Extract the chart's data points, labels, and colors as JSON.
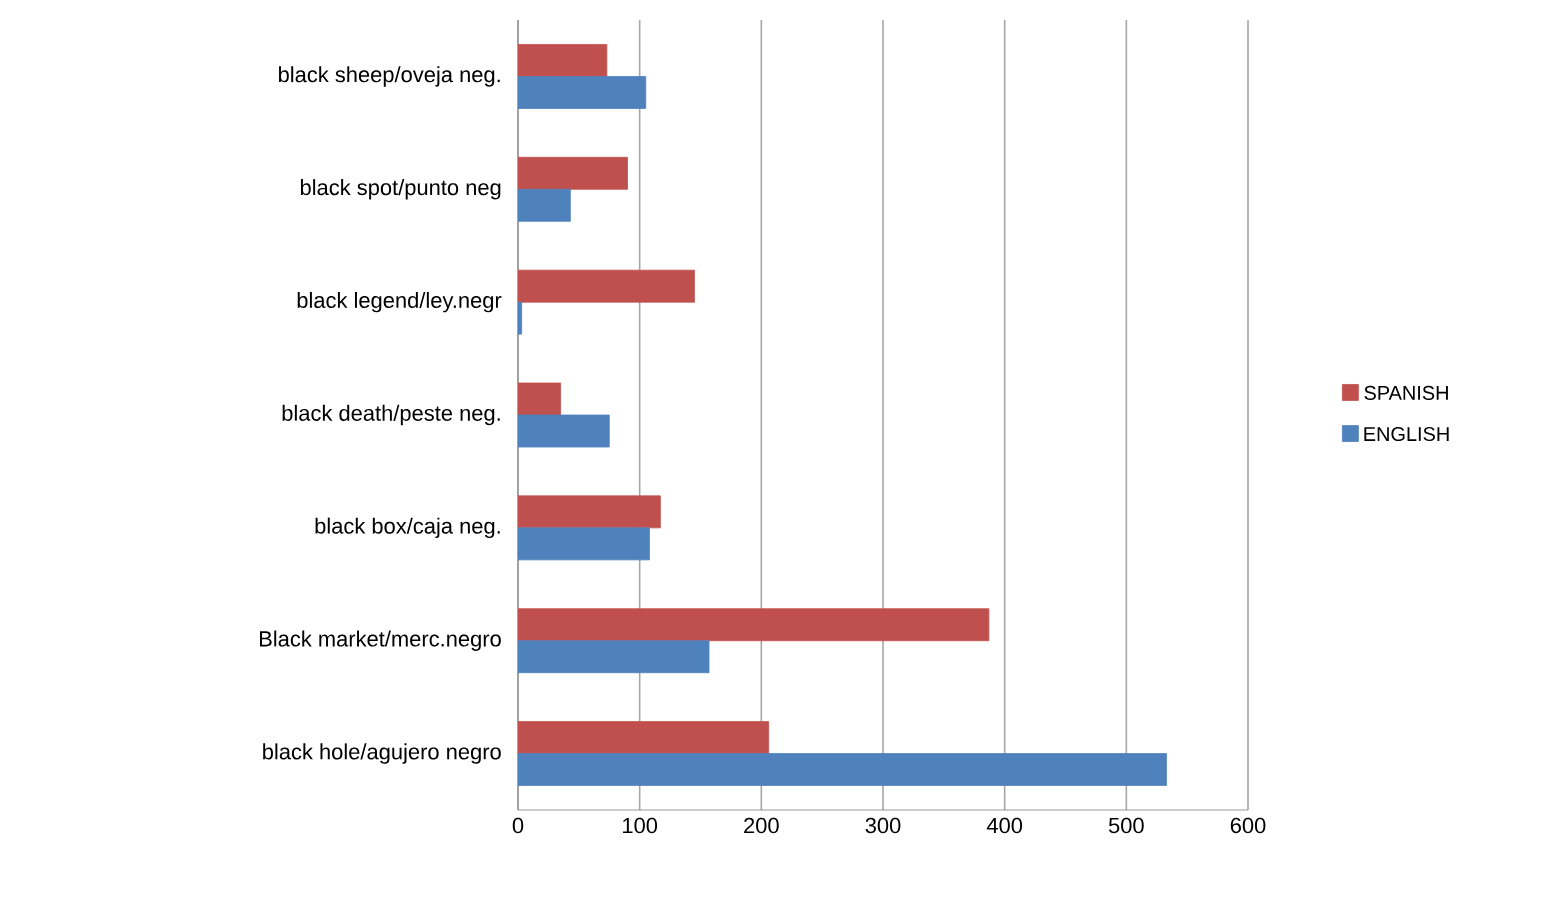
{
  "chart_data": {
    "type": "bar",
    "orientation": "horizontal",
    "categories": [
      "black sheep/oveja neg.",
      "black spot/punto neg",
      "black legend/ley.negr",
      "black death/peste neg.",
      "black box/caja neg.",
      "Black market/merc.negro",
      "black hole/agujero negro"
    ],
    "series": [
      {
        "name": "SPANISH",
        "color": "#c0504d",
        "values": [
          73,
          90,
          145,
          35,
          117,
          387,
          206
        ]
      },
      {
        "name": "ENGLISH",
        "color": "#4f81bd",
        "values": [
          105,
          43,
          3,
          75,
          108,
          157,
          533
        ]
      }
    ],
    "xlim": [
      0,
      600
    ],
    "xticks": [
      0,
      100,
      200,
      300,
      400,
      500,
      600
    ],
    "grid": "x",
    "legend": "right"
  }
}
